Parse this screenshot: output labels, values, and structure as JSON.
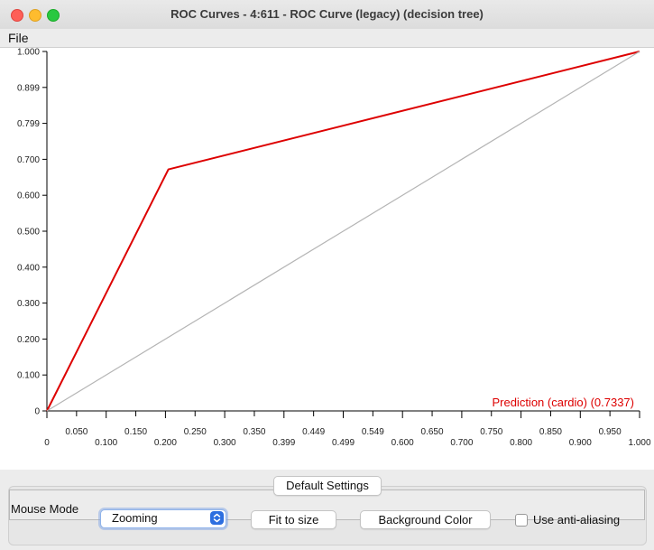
{
  "window": {
    "title": "ROC Curves - 4:611 - ROC Curve (legacy) (decision tree)",
    "traffic_lights": [
      "close",
      "minimize",
      "maximize"
    ]
  },
  "menu": {
    "file": "File"
  },
  "chart_data": {
    "type": "line",
    "title": "",
    "xlabel": "",
    "ylabel": "",
    "xlim": [
      0,
      1
    ],
    "ylim": [
      0,
      1
    ],
    "x_ticks": [
      "0",
      "0.050",
      "0.100",
      "0.150",
      "0.200",
      "0.250",
      "0.300",
      "0.350",
      "0.399",
      "0.449",
      "0.499",
      "0.549",
      "0.600",
      "0.650",
      "0.700",
      "0.750",
      "0.800",
      "0.850",
      "0.900",
      "0.950",
      "1.000"
    ],
    "y_ticks": [
      "0",
      "0.100",
      "0.200",
      "0.300",
      "0.400",
      "0.500",
      "0.600",
      "0.700",
      "0.799",
      "0.899",
      "1.000"
    ],
    "grid": false,
    "series": [
      {
        "name": "Prediction (cardio) (0.7337)",
        "x": [
          0,
          0.205,
          1.0
        ],
        "y": [
          0,
          0.672,
          1.0
        ],
        "color": "#dd0000"
      },
      {
        "x": [
          0,
          1.0
        ],
        "y": [
          0,
          1.0
        ],
        "color": "#b4b4b4"
      }
    ],
    "legend_position": "bottom-right"
  },
  "controls": {
    "default_settings": "Default Settings",
    "mouse_mode_label": "Mouse Mode",
    "mouse_mode_value": "Zooming",
    "fit_to_size": "Fit to size",
    "background_color": "Background Color",
    "anti_aliasing_label": "Use anti-aliasing",
    "anti_aliasing_checked": false
  },
  "colors": {
    "roc_curve": "#dd0000",
    "diagonal": "#b4b4b4",
    "select_accent": "#2d6fe0"
  }
}
